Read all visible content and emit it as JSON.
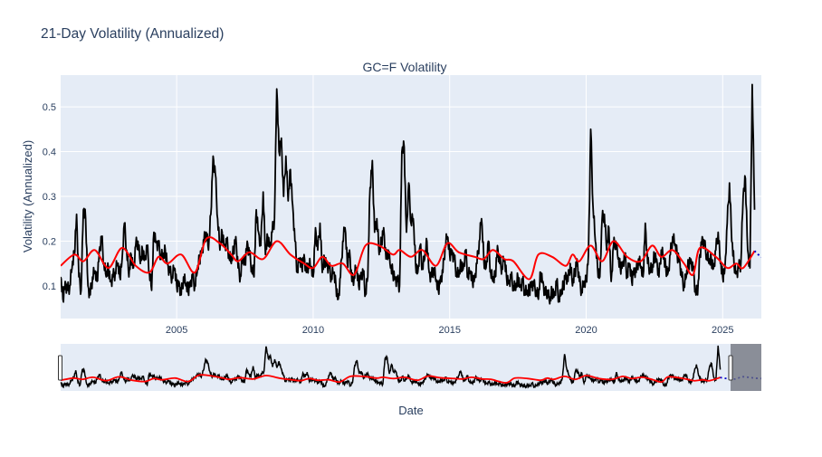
{
  "chart_data": {
    "type": "line",
    "title": "21-Day Volatility (Annualized)",
    "subtitle": "GC=F Volatility",
    "xlabel": "Date",
    "ylabel": "Volatility (Annualized)",
    "x_ticks": [
      "2005",
      "2010",
      "2015",
      "2020",
      "2025"
    ],
    "y_ticks": [
      0.1,
      0.2,
      0.3,
      0.4,
      0.5
    ],
    "xlim": [
      "2000-10",
      "2026-06"
    ],
    "ylim": [
      0.027,
      0.571
    ],
    "grid": true,
    "range_slider": true,
    "range_slider_xlim": [
      "2000-10",
      "2027-10"
    ],
    "colors": {
      "volatility": "#000000",
      "trend": "#ff0000",
      "forecast": "#0000cc",
      "plot_bg": "#e5ecf6",
      "text": "#2a3f5f"
    },
    "series": [
      {
        "style": "solid",
        "color": "#000000",
        "monthly_values_by_year": {
          "2000": [
            0.12,
            0.07,
            0.11
          ],
          "2001": [
            0.09,
            0.1,
            0.14,
            0.17,
            0.26,
            0.12,
            0.09,
            0.27,
            0.25,
            0.1,
            0.08,
            0.12
          ],
          "2002": [
            0.13,
            0.11,
            0.18,
            0.21,
            0.15,
            0.12,
            0.14,
            0.11,
            0.12,
            0.13,
            0.15,
            0.12
          ],
          "2003": [
            0.16,
            0.24,
            0.18,
            0.12,
            0.17,
            0.14,
            0.19,
            0.2,
            0.15,
            0.18,
            0.16,
            0.19
          ],
          "2004": [
            0.13,
            0.09,
            0.22,
            0.2,
            0.19,
            0.17,
            0.16,
            0.18,
            0.15,
            0.13,
            0.12,
            0.14
          ],
          "2005": [
            0.1,
            0.11,
            0.08,
            0.12,
            0.1,
            0.09,
            0.11,
            0.12,
            0.1,
            0.13,
            0.16,
            0.18
          ],
          "2006": [
            0.2,
            0.22,
            0.18,
            0.26,
            0.39,
            0.35,
            0.25,
            0.18,
            0.22,
            0.19,
            0.2,
            0.17
          ],
          "2007": [
            0.15,
            0.18,
            0.21,
            0.14,
            0.12,
            0.16,
            0.15,
            0.2,
            0.17,
            0.14,
            0.12,
            0.27
          ],
          "2008": [
            0.22,
            0.19,
            0.31,
            0.17,
            0.21,
            0.19,
            0.22,
            0.25,
            0.54,
            0.4,
            0.43,
            0.3
          ],
          "2009": [
            0.39,
            0.29,
            0.36,
            0.28,
            0.2,
            0.13,
            0.16,
            0.14,
            0.17,
            0.13,
            0.15,
            0.14
          ],
          "2010": [
            0.12,
            0.23,
            0.18,
            0.24,
            0.13,
            0.16,
            0.15,
            0.14,
            0.12,
            0.13,
            0.1,
            0.07
          ],
          "2011": [
            0.12,
            0.2,
            0.23,
            0.15,
            0.18,
            0.11,
            0.12,
            0.14,
            0.1,
            0.13,
            0.13,
            0.08
          ],
          "2012": [
            0.12,
            0.32,
            0.38,
            0.22,
            0.25,
            0.17,
            0.2,
            0.23,
            0.16,
            0.18,
            0.14,
            0.13
          ],
          "2013": [
            0.12,
            0.11,
            0.1,
            0.4,
            0.41,
            0.22,
            0.33,
            0.24,
            0.25,
            0.15,
            0.13,
            0.19
          ],
          "2014": [
            0.14,
            0.16,
            0.2,
            0.13,
            0.12,
            0.14,
            0.11,
            0.09,
            0.12,
            0.13,
            0.19,
            0.21
          ],
          "2015": [
            0.17,
            0.18,
            0.16,
            0.13,
            0.12,
            0.15,
            0.14,
            0.18,
            0.12,
            0.13,
            0.11,
            0.12
          ],
          "2016": [
            0.15,
            0.2,
            0.25,
            0.16,
            0.14,
            0.2,
            0.13,
            0.11,
            0.12,
            0.19,
            0.15,
            0.14
          ],
          "2017": [
            0.16,
            0.12,
            0.11,
            0.12,
            0.1,
            0.09,
            0.12,
            0.1,
            0.11,
            0.09,
            0.08,
            0.09
          ],
          "2018": [
            0.11,
            0.1,
            0.09,
            0.07,
            0.13,
            0.11,
            0.08,
            0.09,
            0.06,
            0.09,
            0.08,
            0.11
          ],
          "2019": [
            0.07,
            0.08,
            0.1,
            0.13,
            0.11,
            0.15,
            0.1,
            0.13,
            0.16,
            0.11,
            0.09,
            0.1
          ],
          "2020": [
            0.11,
            0.17,
            0.45,
            0.28,
            0.2,
            0.14,
            0.12,
            0.25,
            0.26,
            0.18,
            0.23,
            0.11
          ],
          "2021": [
            0.19,
            0.2,
            0.16,
            0.14,
            0.15,
            0.17,
            0.12,
            0.15,
            0.11,
            0.14,
            0.13,
            0.16
          ],
          "2022": [
            0.14,
            0.12,
            0.24,
            0.15,
            0.14,
            0.13,
            0.17,
            0.16,
            0.12,
            0.18,
            0.16,
            0.14
          ],
          "2023": [
            0.13,
            0.17,
            0.21,
            0.19,
            0.17,
            0.16,
            0.12,
            0.1,
            0.12,
            0.15,
            0.16,
            0.14
          ],
          "2024": [
            0.09,
            0.08,
            0.17,
            0.21,
            0.19,
            0.17,
            0.15,
            0.16,
            0.14,
            0.18,
            0.22,
            0.15
          ],
          "2025": [
            0.12,
            0.14,
            0.24,
            0.33,
            0.2,
            0.15,
            0.13,
            0.14,
            0.15,
            0.3,
            0.34,
            0.18
          ],
          "2026": [
            0.14,
            0.55,
            0.27
          ]
        }
      },
      {
        "style": "solid",
        "color": "#ff0000",
        "points": [
          [
            "2000-10",
            0.145
          ],
          [
            "2001-04",
            0.17
          ],
          [
            "2001-08",
            0.155
          ],
          [
            "2002-01",
            0.18
          ],
          [
            "2002-07",
            0.14
          ],
          [
            "2003-01",
            0.185
          ],
          [
            "2003-07",
            0.145
          ],
          [
            "2004-01",
            0.13
          ],
          [
            "2004-05",
            0.165
          ],
          [
            "2004-09",
            0.15
          ],
          [
            "2005-03",
            0.17
          ],
          [
            "2005-09",
            0.13
          ],
          [
            "2006-02",
            0.205
          ],
          [
            "2006-08",
            0.195
          ],
          [
            "2007-01",
            0.17
          ],
          [
            "2007-04",
            0.155
          ],
          [
            "2007-09",
            0.175
          ],
          [
            "2008-03",
            0.16
          ],
          [
            "2008-09",
            0.2
          ],
          [
            "2009-03",
            0.17
          ],
          [
            "2009-09",
            0.15
          ],
          [
            "2010-01",
            0.14
          ],
          [
            "2010-05",
            0.165
          ],
          [
            "2010-09",
            0.145
          ],
          [
            "2011-02",
            0.15
          ],
          [
            "2011-07",
            0.125
          ],
          [
            "2011-12",
            0.19
          ],
          [
            "2012-06",
            0.19
          ],
          [
            "2012-12",
            0.17
          ],
          [
            "2013-03",
            0.18
          ],
          [
            "2013-08",
            0.165
          ],
          [
            "2014-01",
            0.18
          ],
          [
            "2014-07",
            0.145
          ],
          [
            "2014-12",
            0.195
          ],
          [
            "2015-05",
            0.175
          ],
          [
            "2015-12",
            0.165
          ],
          [
            "2016-04",
            0.16
          ],
          [
            "2016-08",
            0.18
          ],
          [
            "2017-01",
            0.16
          ],
          [
            "2017-05",
            0.155
          ],
          [
            "2017-12",
            0.115
          ],
          [
            "2018-04",
            0.17
          ],
          [
            "2018-10",
            0.165
          ],
          [
            "2019-04",
            0.145
          ],
          [
            "2019-07",
            0.17
          ],
          [
            "2019-10",
            0.155
          ],
          [
            "2020-03",
            0.19
          ],
          [
            "2020-08",
            0.155
          ],
          [
            "2021-01",
            0.2
          ],
          [
            "2021-07",
            0.165
          ],
          [
            "2022-01",
            0.155
          ],
          [
            "2022-06",
            0.19
          ],
          [
            "2022-10",
            0.165
          ],
          [
            "2023-03",
            0.18
          ],
          [
            "2023-08",
            0.15
          ],
          [
            "2023-12",
            0.125
          ],
          [
            "2024-03",
            0.185
          ],
          [
            "2024-10",
            0.165
          ],
          [
            "2025-03",
            0.14
          ],
          [
            "2025-07",
            0.15
          ],
          [
            "2025-10",
            0.14
          ],
          [
            "2026-03",
            0.178
          ]
        ]
      },
      {
        "style": "dotted",
        "color": "#0000cc",
        "points": [
          [
            "2026-03",
            0.178
          ],
          [
            "2026-06",
            0.165
          ],
          [
            "2026-10",
            0.16
          ],
          [
            "2027-01",
            0.185
          ],
          [
            "2027-04",
            0.18
          ],
          [
            "2027-07",
            0.17
          ],
          [
            "2027-10",
            0.165
          ]
        ]
      }
    ]
  }
}
